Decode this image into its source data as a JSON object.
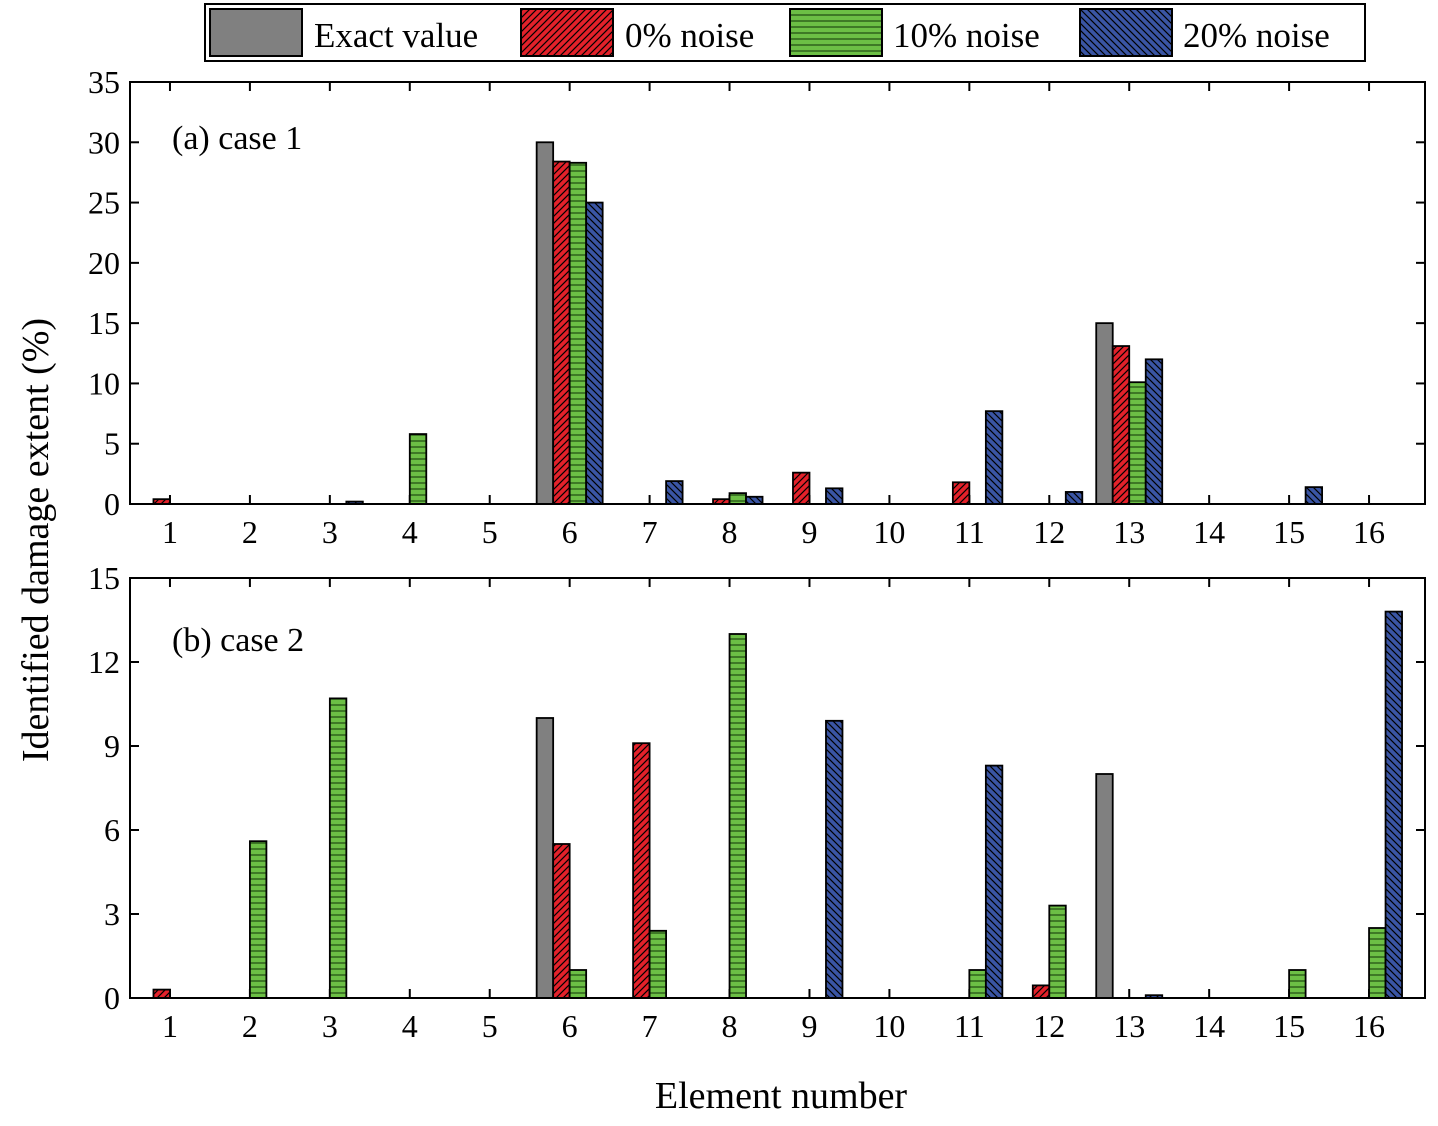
{
  "chart_data": {
    "type": "bar",
    "xlabel": "Element number",
    "ylabel": "Identified damage extent (%)",
    "legend": {
      "placement": "top-center",
      "entries": [
        "Exact value",
        "0% noise",
        "10% noise",
        "20% noise"
      ]
    },
    "series_styles": [
      {
        "name": "Exact value",
        "color": "#808080",
        "pattern": "solid"
      },
      {
        "name": "0% noise",
        "color": "#e3212a",
        "pattern": "hatch-forward"
      },
      {
        "name": "10% noise",
        "color": "#6cbf45",
        "pattern": "horizontal-lines"
      },
      {
        "name": "20% noise",
        "color": "#3a55a4",
        "pattern": "hatch-backward"
      }
    ],
    "panels": [
      {
        "label": "(a) case 1",
        "categories": [
          "1",
          "2",
          "3",
          "4",
          "5",
          "6",
          "7",
          "8",
          "9",
          "10",
          "11",
          "12",
          "13",
          "14",
          "15",
          "16"
        ],
        "ylim": [
          0,
          35
        ],
        "yticks": [
          0,
          5,
          10,
          15,
          20,
          25,
          30,
          35
        ],
        "series": [
          {
            "name": "Exact value",
            "values": [
              0,
              0,
              0,
              0,
              0,
              30,
              0,
              0,
              0,
              0,
              0,
              0,
              15,
              0,
              0,
              0
            ]
          },
          {
            "name": "0% noise",
            "values": [
              0.4,
              0,
              0,
              0,
              0,
              28.4,
              0,
              0.4,
              2.6,
              0,
              1.8,
              0,
              13.1,
              0,
              0,
              0
            ]
          },
          {
            "name": "10% noise",
            "values": [
              0,
              0,
              0,
              5.8,
              0,
              28.3,
              0,
              0.9,
              0,
              0,
              0,
              0,
              10.1,
              0,
              0,
              0
            ]
          },
          {
            "name": "20% noise",
            "values": [
              0,
              0,
              0.2,
              0,
              0,
              25,
              1.9,
              0.6,
              1.3,
              0,
              7.7,
              1.0,
              12.0,
              0,
              1.4,
              0
            ]
          }
        ]
      },
      {
        "label": "(b) case 2",
        "categories": [
          "1",
          "2",
          "3",
          "4",
          "5",
          "6",
          "7",
          "8",
          "9",
          "10",
          "11",
          "12",
          "13",
          "14",
          "15",
          "16"
        ],
        "ylim": [
          0,
          15
        ],
        "yticks": [
          0,
          3,
          6,
          9,
          12,
          15
        ],
        "series": [
          {
            "name": "Exact value",
            "values": [
              0,
              0,
              0,
              0,
              0,
              10,
              0,
              0,
              0,
              0,
              0,
              0,
              8,
              0,
              0,
              0
            ]
          },
          {
            "name": "0% noise",
            "values": [
              0.3,
              0,
              0,
              0,
              0,
              5.5,
              9.1,
              0,
              0,
              0,
              0,
              0.45,
              0,
              0,
              0,
              0
            ]
          },
          {
            "name": "10% noise",
            "values": [
              0,
              5.6,
              10.7,
              0,
              0,
              1.0,
              2.4,
              13.0,
              0,
              0,
              1.0,
              3.3,
              0,
              0,
              1.0,
              2.5
            ]
          },
          {
            "name": "20% noise",
            "values": [
              0,
              0,
              0,
              0,
              0,
              0,
              0,
              0,
              9.9,
              0,
              8.3,
              0,
              0.1,
              0,
              0,
              13.8
            ]
          }
        ]
      }
    ]
  }
}
